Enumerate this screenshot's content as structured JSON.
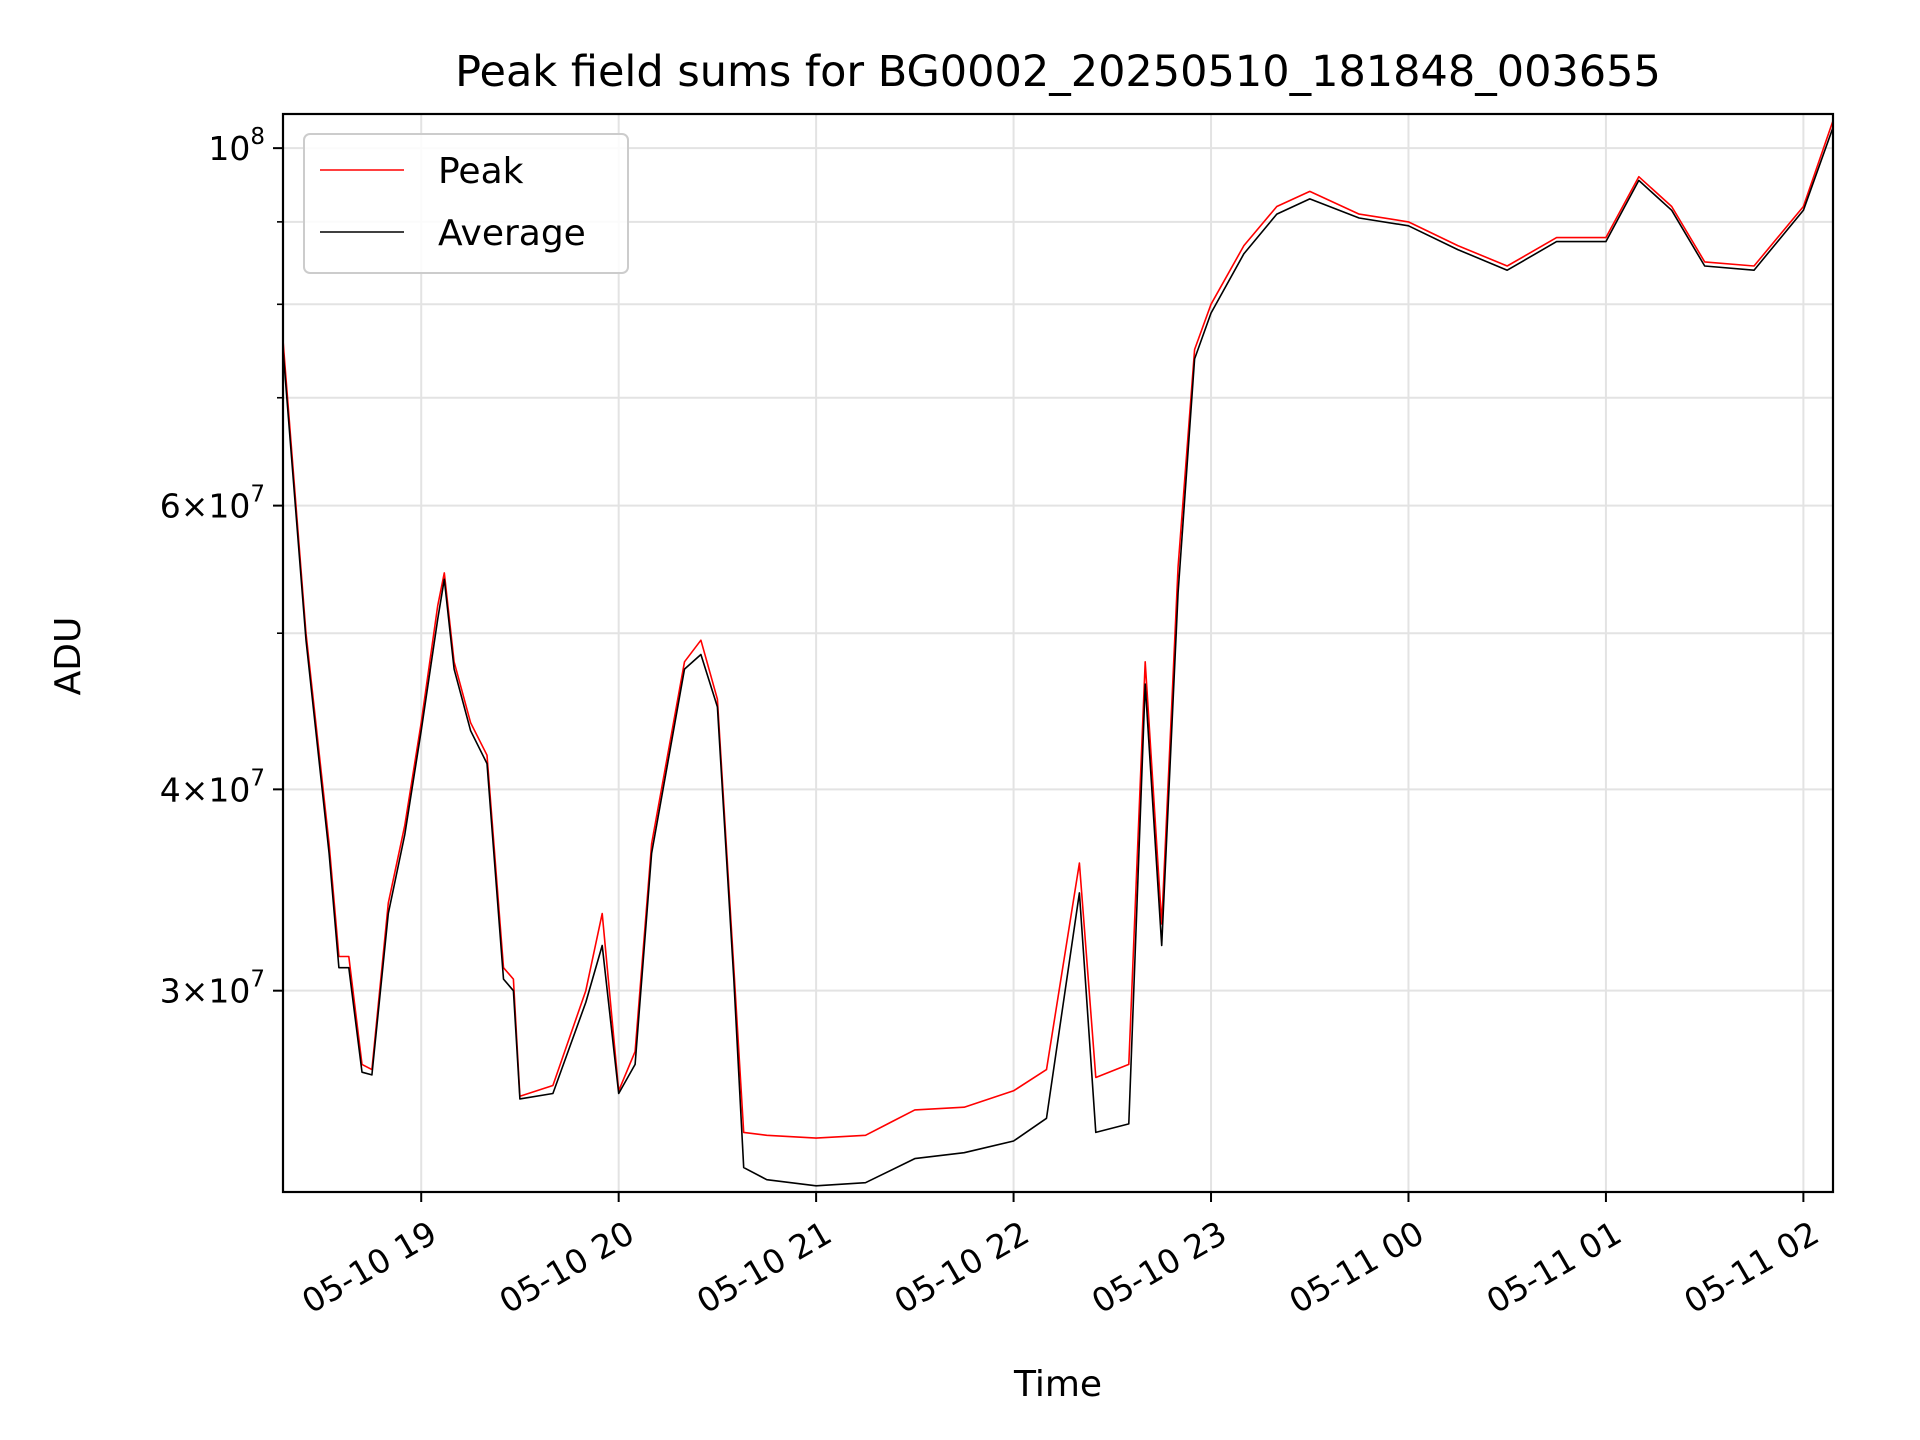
{
  "chart_data": {
    "type": "line",
    "title": "Peak field sums for BG0002_20250510_181848_003655",
    "xlabel": "Time",
    "ylabel": "ADU",
    "yscale": "log",
    "ylim": [
      22500000,
      105000000
    ],
    "xlim": [
      "2025-05-10 18:18",
      "2025-05-11 02:09"
    ],
    "grid": true,
    "legend_position": "top-left",
    "x_ticks": [
      {
        "t": "2025-05-10 19:00",
        "label": "05-10 19"
      },
      {
        "t": "2025-05-10 20:00",
        "label": "05-10 20"
      },
      {
        "t": "2025-05-10 21:00",
        "label": "05-10 21"
      },
      {
        "t": "2025-05-10 22:00",
        "label": "05-10 22"
      },
      {
        "t": "2025-05-10 23:00",
        "label": "05-10 23"
      },
      {
        "t": "2025-05-11 00:00",
        "label": "05-11 00"
      },
      {
        "t": "2025-05-11 01:00",
        "label": "05-11 01"
      },
      {
        "t": "2025-05-11 02:00",
        "label": "05-11 02"
      }
    ],
    "y_ticks": [
      {
        "value": 30000000,
        "label": "3×10",
        "exp": "7"
      },
      {
        "value": 40000000,
        "label": "4×10",
        "exp": "7"
      },
      {
        "value": 60000000,
        "label": "6×10",
        "exp": "7"
      },
      {
        "value": 100000000,
        "label": "10",
        "exp": "8"
      }
    ],
    "y_minor_ticks": [
      50000000,
      70000000,
      80000000,
      90000000
    ],
    "series": [
      {
        "name": "Peak",
        "color": "#ff0000",
        "points": [
          [
            "2025-05-10 18:18",
            76000000
          ],
          [
            "2025-05-10 18:25",
            50000000
          ],
          [
            "2025-05-10 18:32",
            37000000
          ],
          [
            "2025-05-10 18:35",
            31500000
          ],
          [
            "2025-05-10 18:38",
            31500000
          ],
          [
            "2025-05-10 18:42",
            27000000
          ],
          [
            "2025-05-10 18:45",
            26800000
          ],
          [
            "2025-05-10 18:50",
            34000000
          ],
          [
            "2025-05-10 18:55",
            38000000
          ],
          [
            "2025-05-10 19:00",
            44000000
          ],
          [
            "2025-05-10 19:05",
            52000000
          ],
          [
            "2025-05-10 19:07",
            54500000
          ],
          [
            "2025-05-10 19:10",
            48000000
          ],
          [
            "2025-05-10 19:15",
            44000000
          ],
          [
            "2025-05-10 19:20",
            42000000
          ],
          [
            "2025-05-10 19:25",
            31000000
          ],
          [
            "2025-05-10 19:28",
            30500000
          ],
          [
            "2025-05-10 19:30",
            25800000
          ],
          [
            "2025-05-10 19:40",
            26200000
          ],
          [
            "2025-05-10 19:50",
            30000000
          ],
          [
            "2025-05-10 19:55",
            33500000
          ],
          [
            "2025-05-10 20:00",
            26000000
          ],
          [
            "2025-05-10 20:05",
            27500000
          ],
          [
            "2025-05-10 20:10",
            37000000
          ],
          [
            "2025-05-10 20:20",
            48000000
          ],
          [
            "2025-05-10 20:25",
            49500000
          ],
          [
            "2025-05-10 20:30",
            45500000
          ],
          [
            "2025-05-10 20:35",
            31000000
          ],
          [
            "2025-05-10 20:38",
            24500000
          ],
          [
            "2025-05-10 20:45",
            24400000
          ],
          [
            "2025-05-10 21:00",
            24300000
          ],
          [
            "2025-05-10 21:15",
            24400000
          ],
          [
            "2025-05-10 21:30",
            25300000
          ],
          [
            "2025-05-10 21:45",
            25400000
          ],
          [
            "2025-05-10 22:00",
            26000000
          ],
          [
            "2025-05-10 22:10",
            26800000
          ],
          [
            "2025-05-10 22:20",
            36000000
          ],
          [
            "2025-05-10 22:25",
            26500000
          ],
          [
            "2025-05-10 22:35",
            27000000
          ],
          [
            "2025-05-10 22:40",
            48000000
          ],
          [
            "2025-05-10 22:45",
            33000000
          ],
          [
            "2025-05-10 22:50",
            55000000
          ],
          [
            "2025-05-10 22:55",
            75000000
          ],
          [
            "2025-05-10 23:00",
            80000000
          ],
          [
            "2025-05-10 23:10",
            87000000
          ],
          [
            "2025-05-10 23:20",
            92000000
          ],
          [
            "2025-05-10 23:30",
            94000000
          ],
          [
            "2025-05-10 23:45",
            91000000
          ],
          [
            "2025-05-11 00:00",
            90000000
          ],
          [
            "2025-05-11 00:15",
            87000000
          ],
          [
            "2025-05-11 00:30",
            84500000
          ],
          [
            "2025-05-11 00:45",
            88000000
          ],
          [
            "2025-05-11 01:00",
            88000000
          ],
          [
            "2025-05-11 01:10",
            96000000
          ],
          [
            "2025-05-11 01:20",
            92000000
          ],
          [
            "2025-05-11 01:30",
            85000000
          ],
          [
            "2025-05-11 01:45",
            84500000
          ],
          [
            "2025-05-11 02:00",
            92000000
          ],
          [
            "2025-05-11 02:09",
            104000000
          ]
        ]
      },
      {
        "name": "Average",
        "color": "#000000",
        "points": [
          [
            "2025-05-10 18:18",
            75000000
          ],
          [
            "2025-05-10 18:25",
            49500000
          ],
          [
            "2025-05-10 18:32",
            36500000
          ],
          [
            "2025-05-10 18:35",
            31000000
          ],
          [
            "2025-05-10 18:38",
            31000000
          ],
          [
            "2025-05-10 18:42",
            26700000
          ],
          [
            "2025-05-10 18:45",
            26600000
          ],
          [
            "2025-05-10 18:50",
            33500000
          ],
          [
            "2025-05-10 18:55",
            37500000
          ],
          [
            "2025-05-10 19:00",
            43500000
          ],
          [
            "2025-05-10 19:05",
            51000000
          ],
          [
            "2025-05-10 19:07",
            54000000
          ],
          [
            "2025-05-10 19:10",
            47500000
          ],
          [
            "2025-05-10 19:15",
            43500000
          ],
          [
            "2025-05-10 19:20",
            41500000
          ],
          [
            "2025-05-10 19:25",
            30500000
          ],
          [
            "2025-05-10 19:28",
            30000000
          ],
          [
            "2025-05-10 19:30",
            25700000
          ],
          [
            "2025-05-10 19:40",
            25900000
          ],
          [
            "2025-05-10 19:50",
            29500000
          ],
          [
            "2025-05-10 19:55",
            32000000
          ],
          [
            "2025-05-10 20:00",
            25900000
          ],
          [
            "2025-05-10 20:05",
            27000000
          ],
          [
            "2025-05-10 20:10",
            36500000
          ],
          [
            "2025-05-10 20:20",
            47500000
          ],
          [
            "2025-05-10 20:25",
            48500000
          ],
          [
            "2025-05-10 20:30",
            45000000
          ],
          [
            "2025-05-10 20:35",
            30500000
          ],
          [
            "2025-05-10 20:38",
            23300000
          ],
          [
            "2025-05-10 20:45",
            22900000
          ],
          [
            "2025-05-10 21:00",
            22700000
          ],
          [
            "2025-05-10 21:15",
            22800000
          ],
          [
            "2025-05-10 21:30",
            23600000
          ],
          [
            "2025-05-10 21:45",
            23800000
          ],
          [
            "2025-05-10 22:00",
            24200000
          ],
          [
            "2025-05-10 22:10",
            25000000
          ],
          [
            "2025-05-10 22:20",
            34500000
          ],
          [
            "2025-05-10 22:25",
            24500000
          ],
          [
            "2025-05-10 22:35",
            24800000
          ],
          [
            "2025-05-10 22:40",
            46500000
          ],
          [
            "2025-05-10 22:45",
            32000000
          ],
          [
            "2025-05-10 22:50",
            53000000
          ],
          [
            "2025-05-10 22:55",
            74000000
          ],
          [
            "2025-05-10 23:00",
            79000000
          ],
          [
            "2025-05-10 23:10",
            86000000
          ],
          [
            "2025-05-10 23:20",
            91000000
          ],
          [
            "2025-05-10 23:30",
            93000000
          ],
          [
            "2025-05-10 23:45",
            90500000
          ],
          [
            "2025-05-11 00:00",
            89500000
          ],
          [
            "2025-05-11 00:15",
            86500000
          ],
          [
            "2025-05-11 00:30",
            84000000
          ],
          [
            "2025-05-11 00:45",
            87500000
          ],
          [
            "2025-05-11 01:00",
            87500000
          ],
          [
            "2025-05-11 01:10",
            95500000
          ],
          [
            "2025-05-11 01:20",
            91500000
          ],
          [
            "2025-05-11 01:30",
            84500000
          ],
          [
            "2025-05-11 01:45",
            84000000
          ],
          [
            "2025-05-11 02:00",
            91500000
          ],
          [
            "2025-05-11 02:09",
            103000000
          ]
        ]
      }
    ]
  }
}
